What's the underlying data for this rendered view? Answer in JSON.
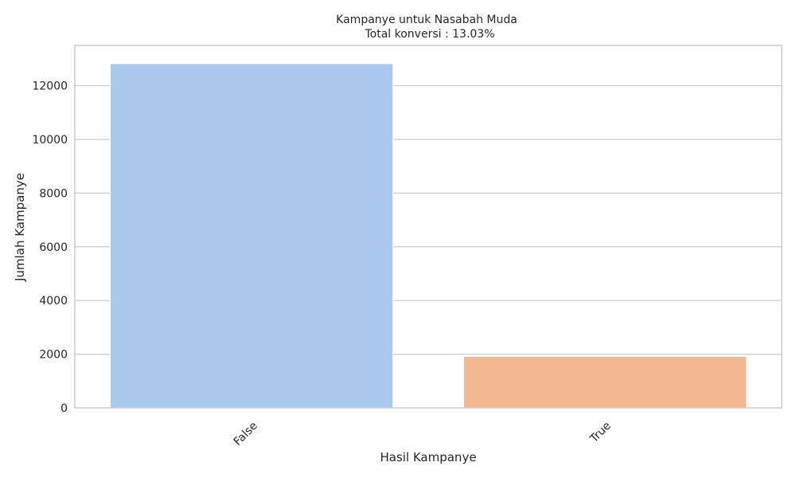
{
  "chart_data": {
    "type": "bar",
    "title": "Kampanye untuk Nasabah Muda",
    "subtitle": "Total konversi : 13.03%",
    "xlabel": "Hasil Kampanye",
    "ylabel": "Jumlah Kampanye",
    "categories": [
      "False",
      "True"
    ],
    "values": [
      12820,
      1920
    ],
    "colors": [
      "#abc9ee",
      "#f1b892"
    ],
    "ylim": [
      0,
      13500
    ],
    "yticks": [
      0,
      2000,
      4000,
      6000,
      8000,
      10000,
      12000
    ],
    "grid": true,
    "grid_axis": "y"
  }
}
